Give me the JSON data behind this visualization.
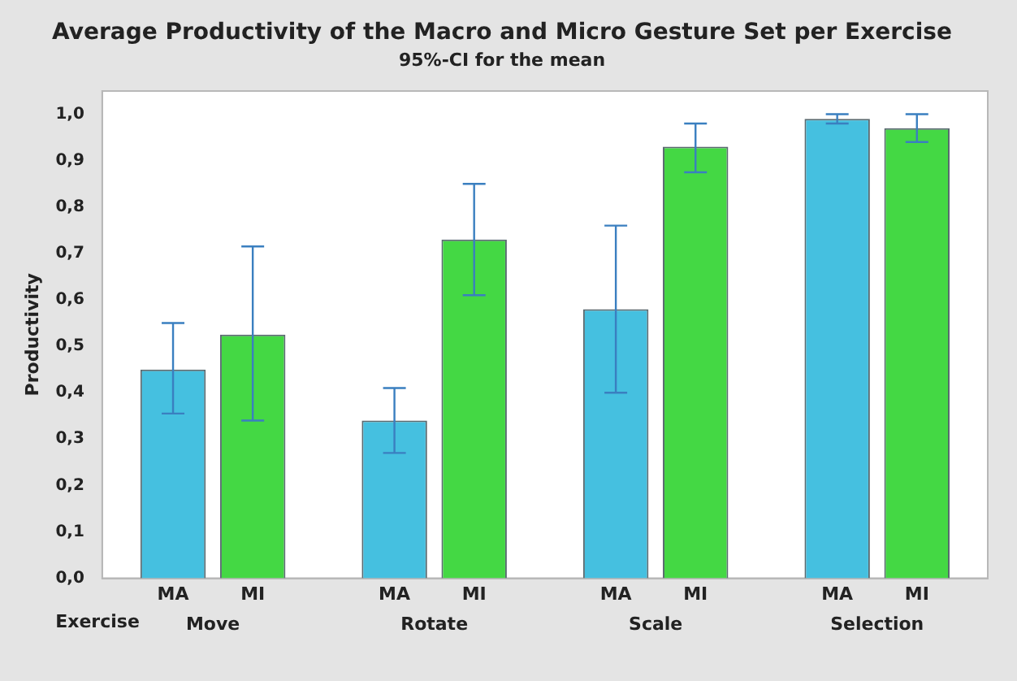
{
  "chart_data": {
    "type": "bar",
    "title": "Average Productivity of the Macro and Micro Gesture Set per Exercise",
    "subtitle": "95%-CI for the mean",
    "xlabel": "Exercise",
    "ylabel": "Productivity",
    "categories": [
      "Move",
      "Rotate",
      "Scale",
      "Selection"
    ],
    "series": [
      {
        "name": "MA",
        "color": "#45c0e0",
        "values": [
          0.45,
          0.34,
          0.58,
          0.99
        ],
        "errors": [
          [
            0.355,
            0.55
          ],
          [
            0.27,
            0.41
          ],
          [
            0.4,
            0.76
          ],
          [
            0.98,
            1.0
          ]
        ]
      },
      {
        "name": "MI",
        "color": "#44d844",
        "values": [
          0.525,
          0.73,
          0.93,
          0.97
        ],
        "errors": [
          [
            0.34,
            0.715
          ],
          [
            0.61,
            0.85
          ],
          [
            0.875,
            0.98
          ],
          [
            0.94,
            1.0
          ]
        ]
      }
    ],
    "ylim": [
      0,
      1.05
    ],
    "yticks": [
      {
        "value": 0,
        "label": "0,0"
      },
      {
        "value": 0.1,
        "label": "0,1"
      },
      {
        "value": 0.2,
        "label": "0,2"
      },
      {
        "value": 0.3,
        "label": "0,3"
      },
      {
        "value": 0.4,
        "label": "0,4"
      },
      {
        "value": 0.5,
        "label": "0,5"
      },
      {
        "value": 0.6,
        "label": "0,6"
      },
      {
        "value": 0.7,
        "label": "0,7"
      },
      {
        "value": 0.8,
        "label": "0,8"
      },
      {
        "value": 0.9,
        "label": "0,9"
      },
      {
        "value": 1.0,
        "label": "1,0"
      }
    ],
    "grid": false,
    "legend": false
  }
}
